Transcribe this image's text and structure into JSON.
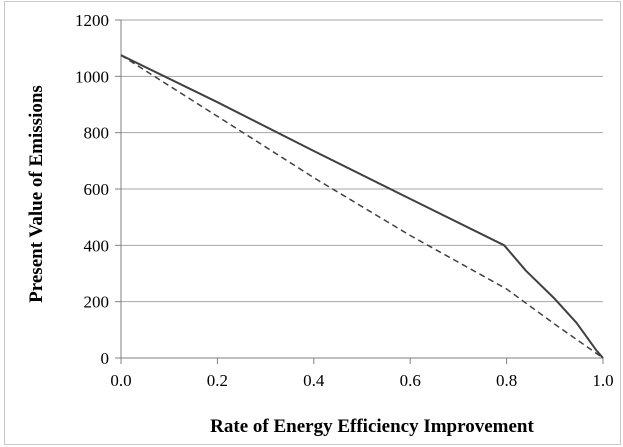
{
  "chart_data": {
    "type": "line",
    "title": "",
    "xlabel": "Rate of Energy Efficiency Improvement",
    "ylabel": "Present  Value of Emissions",
    "xlim": [
      0,
      1.0
    ],
    "ylim": [
      0,
      1200
    ],
    "x_ticks": [
      "0.0",
      "0.2",
      "0.4",
      "0.6",
      "0.8",
      "1.0"
    ],
    "y_ticks": [
      "0",
      "200",
      "400",
      "600",
      "800",
      "1000",
      "1200"
    ],
    "grid": "horizontal",
    "legend": "none",
    "series": [
      {
        "style": "solid",
        "color": "#404040",
        "x": [
          0.0,
          0.2,
          0.4,
          0.6,
          0.795,
          0.84,
          0.9,
          0.945,
          0.985,
          1.0
        ],
        "y": [
          1075,
          908,
          735,
          565,
          400,
          310,
          210,
          125,
          30,
          0
        ]
      },
      {
        "style": "dashed",
        "color": "#404040",
        "x": [
          0.0,
          0.2,
          0.4,
          0.6,
          0.8,
          0.9,
          1.0
        ],
        "y": [
          1075,
          858,
          640,
          435,
          245,
          120,
          0
        ]
      }
    ]
  }
}
